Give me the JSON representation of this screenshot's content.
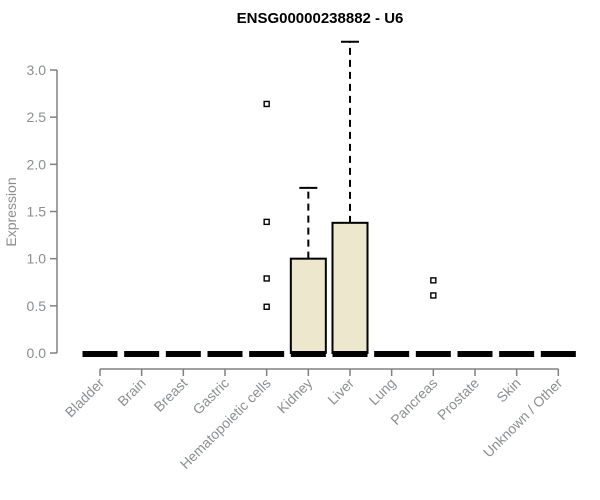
{
  "title": "ENSG00000238882 - U6",
  "colors": {
    "background": "#ffffff",
    "title_text": "#000000",
    "axis_line": "#808080",
    "axis_text": "#8b8e90",
    "box_fill": "#ece7cd",
    "box_stroke": "#000000",
    "median_color": "#000000",
    "whisker_color": "#000000",
    "outlier_stroke": "#000000",
    "outlier_fill": "#ffffff"
  },
  "chart_data": {
    "type": "boxplot",
    "title": "ENSG00000238882 - U6",
    "xlabel": "",
    "ylabel": "Expression",
    "ylim": [
      0,
      3.3
    ],
    "yticks": [
      0,
      0.5,
      1,
      1.5,
      2,
      2.5,
      3
    ],
    "ytick_labels": [
      "0.0",
      "0.5",
      "1.0",
      "1.5",
      "2.0",
      "2.5",
      "3.0"
    ],
    "grid": false,
    "x_label_rotation_deg": 45,
    "categories": [
      "Bladder",
      "Brain",
      "Breast",
      "Gastric",
      "Hematopoietic cells",
      "Kidney",
      "Liver",
      "Lung",
      "Pancreas",
      "Prostate",
      "Skin",
      "Unknown / Other"
    ],
    "boxes": [
      {
        "category": "Bladder",
        "q1": 0,
        "median": 0,
        "q3": 0,
        "whisker_low": 0,
        "whisker_high": 0,
        "outliers": []
      },
      {
        "category": "Brain",
        "q1": 0,
        "median": 0,
        "q3": 0,
        "whisker_low": 0,
        "whisker_high": 0,
        "outliers": []
      },
      {
        "category": "Breast",
        "q1": 0,
        "median": 0,
        "q3": 0,
        "whisker_low": 0,
        "whisker_high": 0,
        "outliers": []
      },
      {
        "category": "Gastric",
        "q1": 0,
        "median": 0,
        "q3": 0,
        "whisker_low": 0,
        "whisker_high": 0,
        "outliers": []
      },
      {
        "category": "Hematopoietic cells",
        "q1": 0,
        "median": 0,
        "q3": 0,
        "whisker_low": 0,
        "whisker_high": 0,
        "outliers": [
          0.49,
          0.79,
          1.39,
          2.64
        ]
      },
      {
        "category": "Kidney",
        "q1": 0,
        "median": 0,
        "q3": 1.0,
        "whisker_low": 0,
        "whisker_high": 1.75,
        "outliers": []
      },
      {
        "category": "Liver",
        "q1": 0,
        "median": 0,
        "q3": 1.38,
        "whisker_low": 0,
        "whisker_high": 3.3,
        "outliers": []
      },
      {
        "category": "Lung",
        "q1": 0,
        "median": 0,
        "q3": 0,
        "whisker_low": 0,
        "whisker_high": 0,
        "outliers": []
      },
      {
        "category": "Pancreas",
        "q1": 0,
        "median": 0,
        "q3": 0,
        "whisker_low": 0,
        "whisker_high": 0,
        "outliers": [
          0.61,
          0.77
        ]
      },
      {
        "category": "Prostate",
        "q1": 0,
        "median": 0,
        "q3": 0,
        "whisker_low": 0,
        "whisker_high": 0,
        "outliers": []
      },
      {
        "category": "Skin",
        "q1": 0,
        "median": 0,
        "q3": 0,
        "whisker_low": 0,
        "whisker_high": 0,
        "outliers": []
      },
      {
        "category": "Unknown / Other",
        "q1": 0,
        "median": 0,
        "q3": 0,
        "whisker_low": 0,
        "whisker_high": 0,
        "outliers": []
      }
    ]
  }
}
